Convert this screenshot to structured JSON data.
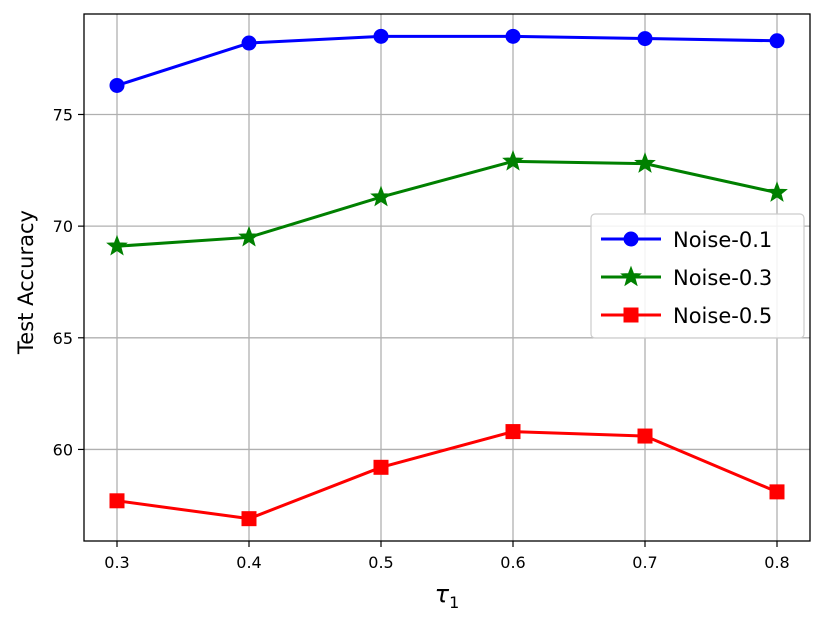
{
  "chart_data": {
    "type": "line",
    "title": "",
    "xlabel": "τ",
    "xlabel_subscript": "1",
    "ylabel": "Test Accuracy",
    "x": [
      0.3,
      0.4,
      0.5,
      0.6,
      0.7,
      0.8
    ],
    "x_tick_labels": [
      "0.3",
      "0.4",
      "0.5",
      "0.6",
      "0.7",
      "0.8"
    ],
    "xlim": [
      0.275,
      0.825
    ],
    "y_ticks": [
      60,
      65,
      70,
      75
    ],
    "y_tick_labels": [
      "60",
      "65",
      "70",
      "75"
    ],
    "ylim": [
      55.9,
      79.5
    ],
    "grid": true,
    "legend_position": "center-right",
    "series": [
      {
        "name": "Noise-0.1",
        "color": "#0000ff",
        "marker": "circle",
        "values": [
          76.3,
          78.2,
          78.5,
          78.5,
          78.4,
          78.3
        ]
      },
      {
        "name": "Noise-0.3",
        "color": "#008000",
        "marker": "star",
        "values": [
          69.1,
          69.5,
          71.3,
          72.9,
          72.8,
          71.5
        ]
      },
      {
        "name": "Noise-0.5",
        "color": "#ff0000",
        "marker": "square",
        "values": [
          57.7,
          56.9,
          59.2,
          60.8,
          60.6,
          58.1
        ]
      }
    ]
  }
}
